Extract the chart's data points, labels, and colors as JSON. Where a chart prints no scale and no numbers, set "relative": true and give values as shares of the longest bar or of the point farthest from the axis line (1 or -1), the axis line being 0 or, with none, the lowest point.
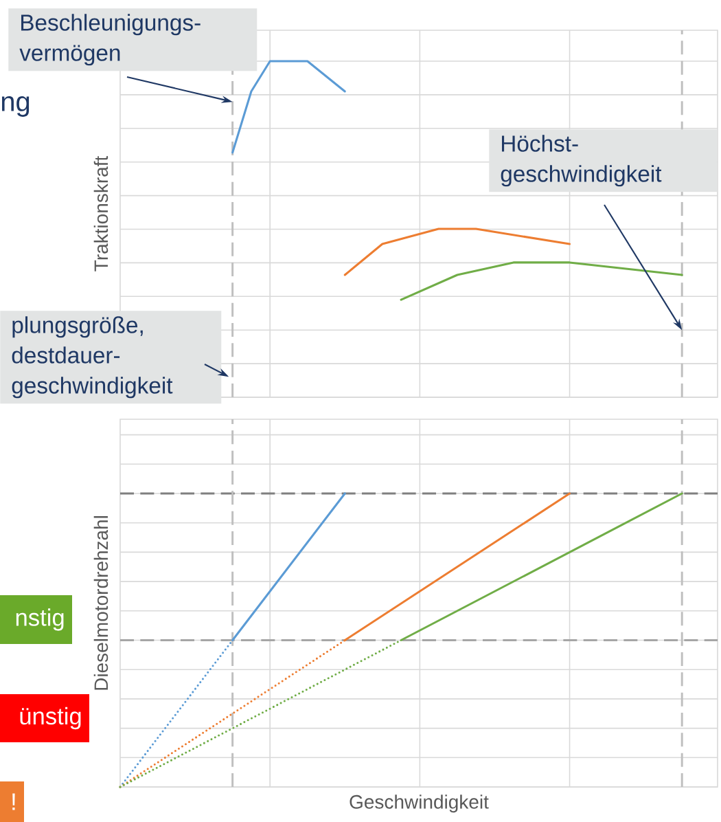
{
  "chart_data": [
    {
      "type": "line",
      "title": "ng",
      "ylabel": "Traktionskraft",
      "relative": true,
      "grid": true,
      "categories": [
        null,
        null,
        null,
        null,
        null,
        null,
        null,
        null,
        null,
        null,
        null,
        null,
        null,
        null,
        null,
        null,
        null,
        null,
        null,
        null,
        null,
        null,
        null,
        null,
        null,
        null,
        null,
        null,
        null,
        null,
        null,
        null
      ],
      "series": [
        {
          "color": "#5b9bd5",
          "values": [
            null,
            null,
            null,
            null,
            null,
            null,
            0.728,
            0.91,
            1,
            null,
            1,
            null,
            0.91,
            null,
            null,
            null,
            null,
            null,
            null,
            null,
            null,
            null,
            null,
            null,
            null,
            null,
            null,
            null,
            null,
            null,
            null,
            null
          ]
        },
        {
          "color": "#ed7d31",
          "values": [
            null,
            null,
            null,
            null,
            null,
            null,
            null,
            null,
            null,
            null,
            null,
            null,
            0.364,
            null,
            0.456,
            null,
            null,
            0.501,
            null,
            0.501,
            null,
            null,
            null,
            null,
            0.456,
            null,
            null,
            null,
            null,
            null,
            null,
            null
          ]
        },
        {
          "color": "#70ad47",
          "values": [
            null,
            null,
            null,
            null,
            null,
            null,
            null,
            null,
            null,
            null,
            null,
            null,
            null,
            null,
            null,
            0.29,
            null,
            null,
            0.364,
            null,
            null,
            0.401,
            null,
            null,
            0.401,
            null,
            null,
            null,
            null,
            null,
            0.364,
            null
          ]
        }
      ],
      "annotations": [
        "Beschleunigungs- vermögen",
        "Höchst- geschwindigkeit",
        "plungsgröße, destdauer- geschwindigkeit"
      ]
    },
    {
      "type": "line",
      "ylabel": "Dieselmotordrehzahl",
      "xlabel": "Geschwindigkeit",
      "relative": true,
      "grid": true,
      "categories": [
        null,
        null,
        null,
        null,
        null,
        null,
        null,
        null,
        null,
        null,
        null,
        null,
        null,
        null,
        null,
        null,
        null,
        null,
        null,
        null,
        null,
        null,
        null,
        null,
        null,
        null,
        null,
        null,
        null,
        null,
        null,
        null
      ],
      "series": [
        {
          "color": "#5b9bd5",
          "line_style": "dotted",
          "values": [
            0,
            null,
            null,
            null,
            null,
            null,
            0.5,
            null,
            null,
            null,
            null,
            null,
            null,
            null,
            null,
            null,
            null,
            null,
            null,
            null,
            null,
            null,
            null,
            null,
            null,
            null,
            null,
            null,
            null,
            null,
            null,
            null
          ]
        },
        {
          "color": "#5b9bd5",
          "line_style": "solid",
          "values": [
            null,
            null,
            null,
            null,
            null,
            null,
            0.5,
            null,
            null,
            null,
            null,
            null,
            1,
            null,
            null,
            null,
            null,
            null,
            null,
            null,
            null,
            null,
            null,
            null,
            null,
            null,
            null,
            null,
            null,
            null,
            null,
            null
          ]
        },
        {
          "color": "#ed7d31",
          "line_style": "dotted",
          "values": [
            0,
            null,
            null,
            null,
            null,
            null,
            null,
            null,
            null,
            null,
            null,
            null,
            0.5,
            null,
            null,
            null,
            null,
            null,
            null,
            null,
            null,
            null,
            null,
            null,
            null,
            null,
            null,
            null,
            null,
            null,
            null,
            null
          ]
        },
        {
          "color": "#ed7d31",
          "line_style": "solid",
          "values": [
            null,
            null,
            null,
            null,
            null,
            null,
            null,
            null,
            null,
            null,
            null,
            null,
            0.5,
            null,
            null,
            null,
            null,
            null,
            null,
            null,
            null,
            null,
            null,
            null,
            1,
            null,
            null,
            null,
            null,
            null,
            null,
            null
          ]
        },
        {
          "color": "#70ad47",
          "line_style": "dotted",
          "values": [
            0,
            null,
            null,
            null,
            null,
            null,
            null,
            null,
            null,
            null,
            null,
            null,
            null,
            null,
            null,
            0.5,
            null,
            null,
            null,
            null,
            null,
            null,
            null,
            null,
            null,
            null,
            null,
            null,
            null,
            null,
            null,
            null
          ]
        },
        {
          "color": "#70ad47",
          "line_style": "solid",
          "values": [
            null,
            null,
            null,
            null,
            null,
            null,
            null,
            null,
            null,
            null,
            null,
            null,
            null,
            null,
            null,
            0.5,
            null,
            null,
            null,
            null,
            null,
            null,
            null,
            null,
            null,
            null,
            null,
            null,
            null,
            null,
            1,
            null
          ]
        }
      ],
      "ref_lines": [
        {
          "axis": "y",
          "value": 1,
          "color": "#7f7f7f",
          "line_style": "dashed"
        },
        {
          "axis": "y",
          "value": 0.5,
          "color": "#a6a6a6",
          "line_style": "dashed"
        }
      ],
      "annotations": [
        "nstig",
        "ünstig",
        "!"
      ]
    }
  ]
}
